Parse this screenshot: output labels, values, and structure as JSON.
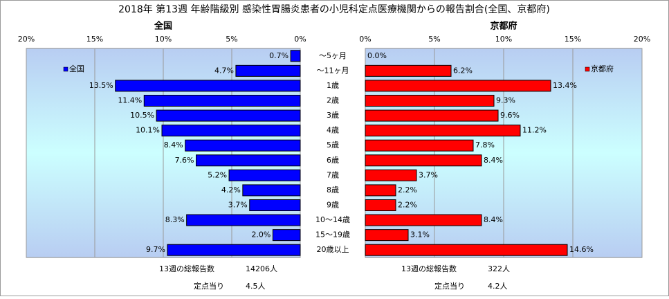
{
  "title": "2018年 第13週 年齢階級別 感染性胃腸炎患者の小児科定点医療機関からの報告割合(全国、京都府)",
  "categories": [
    "～5ヶ月",
    "～11ヶ月",
    "1歳",
    "2歳",
    "3歳",
    "4歳",
    "5歳",
    "6歳",
    "7歳",
    "8歳",
    "9歳",
    "10～14歳",
    "15～19歳",
    "20歳以上"
  ],
  "chart_data": [
    {
      "type": "bar",
      "orientation": "horizontal",
      "title": "全国",
      "x_reversed": true,
      "legend": "upper left",
      "grid": true,
      "xlim": [
        0,
        20
      ],
      "xticks": [
        {
          "value": 0,
          "label": "0%"
        },
        {
          "value": 5,
          "label": "5%"
        },
        {
          "value": 10,
          "label": "10%"
        },
        {
          "value": 15,
          "label": "15%"
        },
        {
          "value": 20,
          "label": "20%"
        }
      ],
      "series": [
        {
          "name": "全国",
          "color": "#0000ff",
          "values": [
            0.7,
            4.7,
            13.5,
            11.4,
            10.5,
            10.1,
            8.4,
            7.6,
            5.2,
            4.2,
            3.7,
            8.3,
            2.0,
            9.7
          ],
          "value_labels": [
            "0.7%",
            "4.7%",
            "13.5%",
            "11.4%",
            "10.5%",
            "10.1%",
            "8.4%",
            "7.6%",
            "5.2%",
            "4.2%",
            "3.7%",
            "8.3%",
            "2.0%",
            "9.7%"
          ]
        }
      ]
    },
    {
      "type": "bar",
      "orientation": "horizontal",
      "title": "京都府",
      "x_reversed": false,
      "legend": "upper right",
      "grid": true,
      "xlim": [
        0,
        20
      ],
      "xticks": [
        {
          "value": 0,
          "label": "0%"
        },
        {
          "value": 5,
          "label": "5%"
        },
        {
          "value": 10,
          "label": "10%"
        },
        {
          "value": 15,
          "label": "15%"
        },
        {
          "value": 20,
          "label": "20%"
        }
      ],
      "series": [
        {
          "name": "京都府",
          "color": "#ff0000",
          "values": [
            0.0,
            6.2,
            13.4,
            9.3,
            9.6,
            11.2,
            7.8,
            8.4,
            3.7,
            2.2,
            2.2,
            8.4,
            3.1,
            14.6
          ],
          "value_labels": [
            "0.0%",
            "6.2%",
            "13.4%",
            "9.3%",
            "9.6%",
            "11.2%",
            "7.8%",
            "8.4%",
            "3.7%",
            "2.2%",
            "2.2%",
            "8.4%",
            "3.1%",
            "14.6%"
          ]
        }
      ]
    }
  ],
  "footer": [
    {
      "total_label": "13週の総報告数",
      "total": "14206人",
      "per_label": "定点当り",
      "per": "4.5人"
    },
    {
      "total_label": "13週の総報告数",
      "total": "322人",
      "per_label": "定点当り",
      "per": "4.2人"
    }
  ]
}
